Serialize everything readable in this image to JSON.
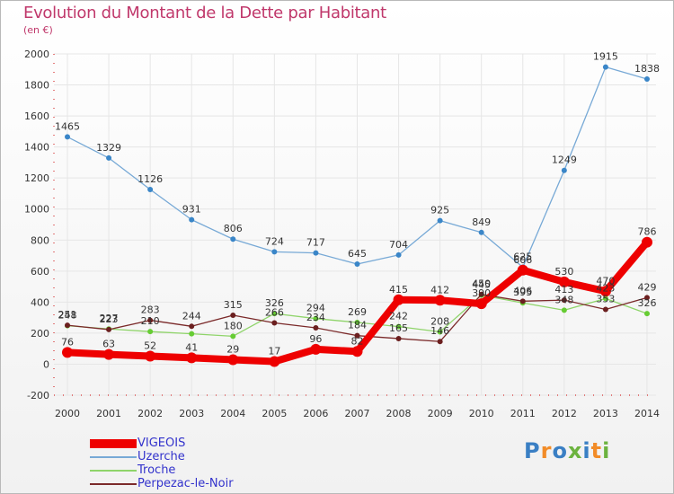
{
  "title": "Evolution du Montant de la Dette par Habitant",
  "subtitle": "(en €)",
  "logo_text": "Proxiti",
  "colors": {
    "title": "#c0386b",
    "grid": "#e6e6e6",
    "axis": "#cc0000",
    "legend_text": "#3333cc",
    "logo": [
      "#3a7fc4",
      "#f28c28",
      "#3a7fc4",
      "#6cb33f",
      "#3a7fc4",
      "#f28c28",
      "#6cb33f"
    ]
  },
  "chart_data": {
    "type": "line",
    "title": "Evolution du Montant de la Dette par Habitant",
    "ylabel": "(en €)",
    "x": [
      2000,
      2001,
      2002,
      2003,
      2004,
      2005,
      2006,
      2007,
      2008,
      2009,
      2010,
      2011,
      2012,
      2013,
      2014
    ],
    "ylim": [
      -200,
      2000
    ],
    "yticks": [
      -200,
      0,
      200,
      400,
      600,
      800,
      1000,
      1200,
      1400,
      1600,
      1800,
      2000
    ],
    "grid": true,
    "legend_position": "bottom-left",
    "series": [
      {
        "name": "VIGEOIS",
        "color": "#ee0000",
        "bold": true,
        "values": [
          76,
          63,
          52,
          41,
          29,
          17,
          96,
          82,
          415,
          412,
          390,
          606,
          530,
          470,
          786
        ],
        "labels": [
          "76",
          "63",
          "52",
          "41",
          "29",
          "17",
          "96",
          "82",
          "415",
          "412",
          "390",
          "606",
          "530",
          "470",
          "786"
        ]
      },
      {
        "name": "Uzerche",
        "color": "#77a9d6",
        "marker": "#3a86c8",
        "values": [
          1465,
          1329,
          1126,
          931,
          806,
          724,
          717,
          645,
          704,
          925,
          849,
          625,
          1249,
          1915,
          1838
        ],
        "labels": [
          "1465",
          "1329",
          "1126",
          "931",
          "806",
          "724",
          "717",
          "645",
          "704",
          "925",
          "849",
          "625",
          "1249",
          "1915",
          "1838"
        ]
      },
      {
        "name": "Troche",
        "color": "#8fd46a",
        "marker": "#66cc33",
        "values": [
          248,
          227,
          210,
          196,
          180,
          326,
          294,
          269,
          242,
          208,
          445,
          395,
          348,
          423,
          326
        ],
        "labels": [
          "248",
          "227",
          "210",
          "",
          "180",
          "326",
          "294",
          "269",
          "242",
          "208",
          "445",
          "395",
          "348",
          "423",
          "326"
        ]
      },
      {
        "name": "Perpezac-le-Noir",
        "color": "#7b2a2a",
        "marker": "#6b1f1f",
        "values": [
          251,
          223,
          283,
          244,
          315,
          266,
          234,
          184,
          165,
          146,
          450,
          406,
          413,
          353,
          429
        ],
        "labels": [
          "251",
          "223",
          "283",
          "244",
          "315",
          "266",
          "234",
          "184",
          "165",
          "146",
          "450",
          "406",
          "413",
          "353",
          "429"
        ]
      }
    ]
  }
}
